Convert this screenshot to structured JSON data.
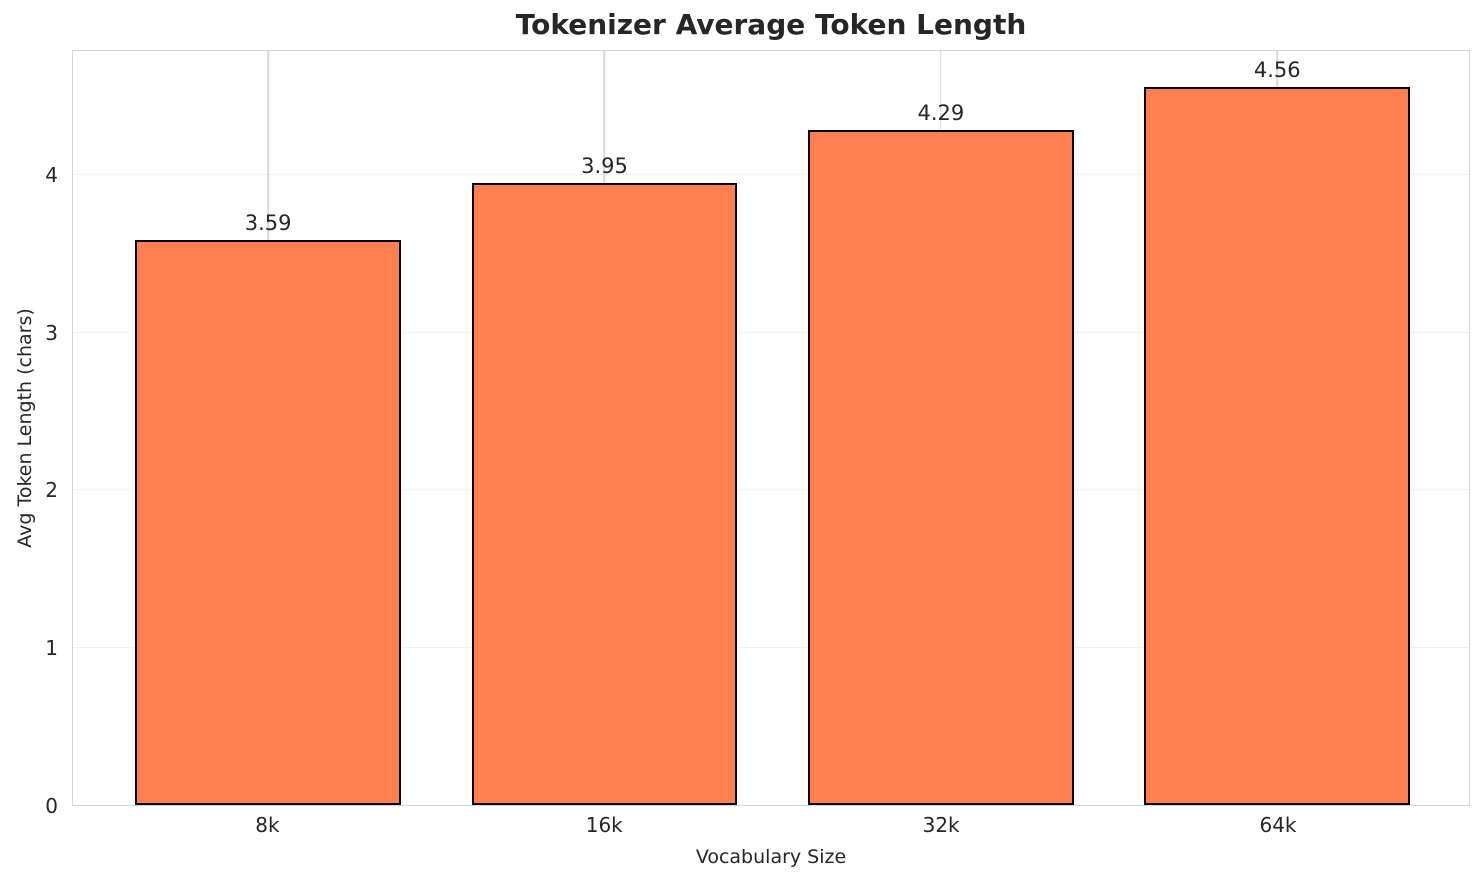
{
  "chart_data": {
    "type": "bar",
    "title": "Tokenizer Average Token Length",
    "xlabel": "Vocabulary Size",
    "ylabel": "Avg Token Length (chars)",
    "categories": [
      "8k",
      "16k",
      "32k",
      "64k"
    ],
    "values": [
      3.59,
      3.95,
      4.29,
      4.56
    ],
    "value_labels": [
      "3.59",
      "3.95",
      "4.29",
      "4.56"
    ],
    "yticks": [
      0,
      1,
      2,
      3,
      4
    ],
    "ylim": [
      0,
      4.79
    ],
    "xlim": [
      -0.58,
      3.57
    ],
    "bar_width": 0.79,
    "grid": true,
    "legend": "none",
    "colors": {
      "bar_fill": "#ff7f50",
      "bar_edge": "#000000",
      "grid_vertical": "#d9d9d9",
      "grid_horizontal": "#f0f0f0",
      "spine": "#d5d5d5",
      "text": "#262626",
      "background": "#ffffff"
    }
  }
}
